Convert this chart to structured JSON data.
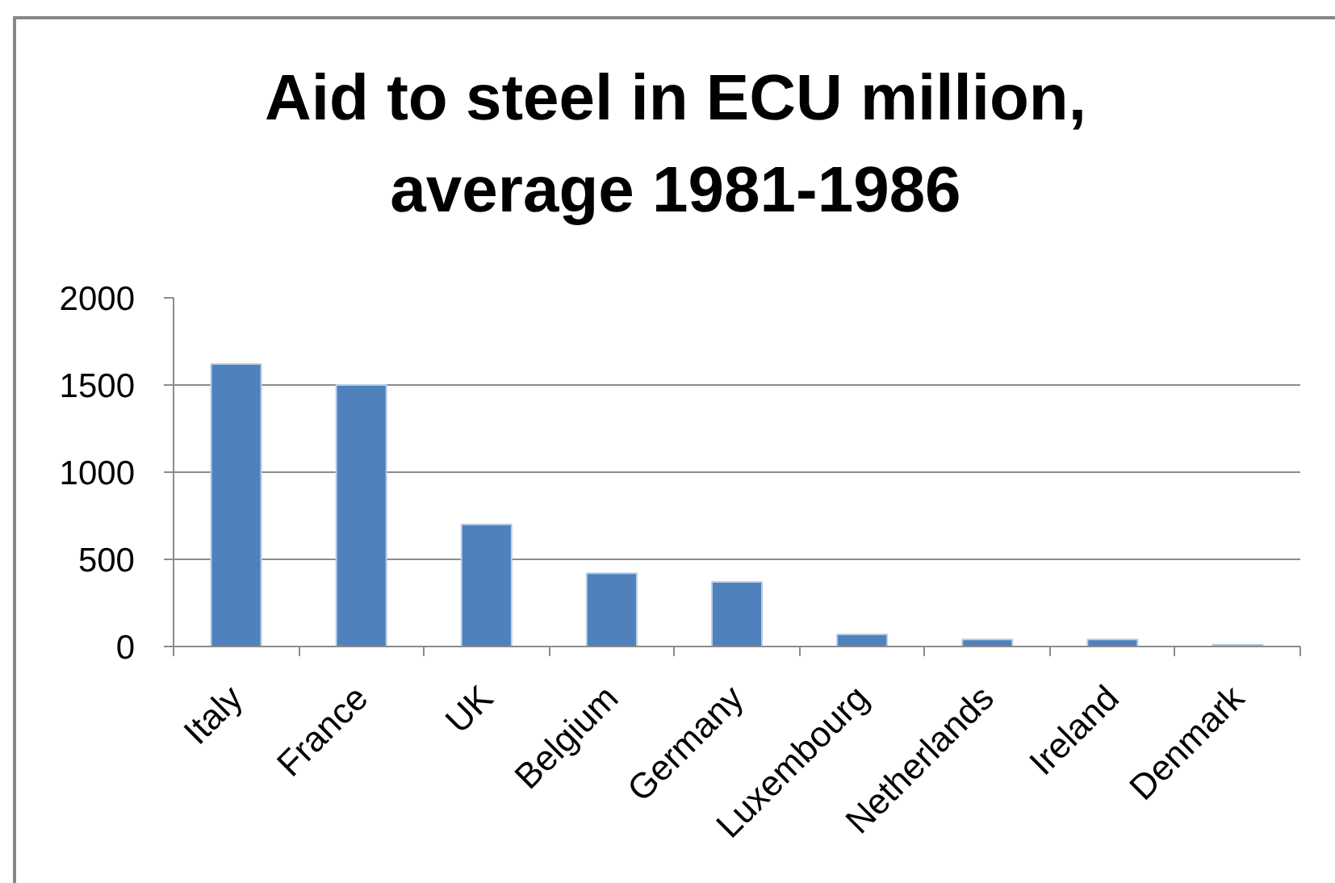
{
  "chart_data": {
    "type": "bar",
    "title": "Aid to steel in ECU million, average 1981-1986",
    "categories": [
      "Italy",
      "France",
      "UK",
      "Belgium",
      "Germany",
      "Luxembourg",
      "Netherlands",
      "Ireland",
      "Denmark"
    ],
    "values": [
      1620,
      1500,
      700,
      420,
      370,
      70,
      40,
      40,
      10
    ],
    "color": "#4f81bd",
    "ylim": [
      0,
      2000
    ],
    "yticks": [
      0,
      500,
      1000,
      1500,
      2000
    ],
    "grid": "y"
  }
}
